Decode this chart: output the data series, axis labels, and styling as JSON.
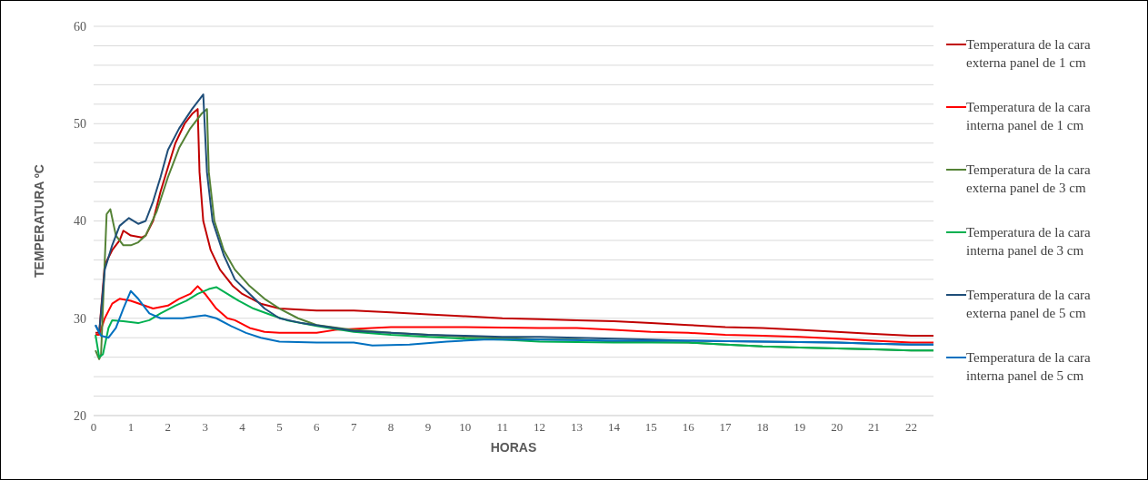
{
  "chart_data": {
    "type": "line",
    "xlabel": "HORAS",
    "ylabel": "TEMPERATURA ºC",
    "xlim": [
      0,
      22.6
    ],
    "xticks": [
      0,
      1,
      2,
      3,
      4,
      5,
      6,
      7,
      8,
      9,
      10,
      11,
      12,
      13,
      14,
      15,
      16,
      17,
      18,
      19,
      20,
      21,
      22
    ],
    "ylim": [
      20,
      60
    ],
    "yticks": [
      20,
      {
        "value": 22,
        "label": null
      },
      {
        "value": 24,
        "label": null
      },
      {
        "value": 26,
        "label": null
      },
      {
        "value": 28,
        "label": null
      },
      30,
      {
        "value": 32,
        "label": null
      },
      {
        "value": 34,
        "label": null
      },
      {
        "value": 36,
        "label": null
      },
      {
        "value": 38,
        "label": null
      },
      40,
      {
        "value": 42,
        "label": null
      },
      {
        "value": 44,
        "label": null
      },
      {
        "value": 46,
        "label": null
      },
      {
        "value": 48,
        "label": null
      },
      50,
      {
        "value": 52,
        "label": null
      },
      {
        "value": 54,
        "label": null
      },
      {
        "value": 56,
        "label": null
      },
      {
        "value": 58,
        "label": null
      },
      60
    ],
    "grid": "y",
    "legend": "right",
    "marker": "none",
    "line_style": "solid",
    "series": [
      {
        "name": "Temperatura de la cara externa panel de 1 cm",
        "color": "#c00000",
        "x": [
          0.05,
          0.15,
          0.3,
          0.5,
          0.7,
          0.8,
          1.0,
          1.3,
          1.4,
          1.6,
          1.8,
          2.0,
          2.2,
          2.45,
          2.65,
          2.8,
          2.85,
          2.95,
          3.15,
          3.4,
          3.75,
          4.0,
          4.5,
          5,
          6,
          7,
          8,
          9,
          10,
          11,
          12,
          13,
          14,
          15,
          16,
          17,
          18,
          19,
          20,
          21,
          22,
          22.6
        ],
        "values": [
          28.5,
          28.5,
          35.5,
          37,
          38,
          39,
          38.5,
          38.3,
          38.5,
          40,
          43,
          45.5,
          48,
          50,
          51,
          51.5,
          45,
          40,
          37,
          35,
          33.3,
          32.5,
          31.5,
          31,
          30.8,
          30.8,
          30.6,
          30.4,
          30.2,
          30,
          29.9,
          29.8,
          29.7,
          29.5,
          29.3,
          29.1,
          29,
          28.8,
          28.6,
          28.4,
          28.2,
          28.2
        ]
      },
      {
        "name": "Temperatura de la cara interna panel de 1 cm",
        "color": "#ff0000",
        "x": [
          0.05,
          0.15,
          0.3,
          0.5,
          0.7,
          1.0,
          1.3,
          1.6,
          2.0,
          2.3,
          2.6,
          2.8,
          3.0,
          3.3,
          3.6,
          3.8,
          4.2,
          4.6,
          5,
          6,
          6.5,
          7.5,
          8,
          10,
          12,
          13,
          14,
          15,
          16,
          17,
          18,
          19,
          20,
          21,
          22,
          22.6
        ],
        "values": [
          28.3,
          28.3,
          30,
          31.5,
          32,
          31.8,
          31.4,
          31,
          31.3,
          32,
          32.5,
          33.3,
          32.5,
          31,
          30,
          29.8,
          29,
          28.6,
          28.5,
          28.5,
          28.8,
          29,
          29.1,
          29.1,
          29,
          29,
          28.8,
          28.6,
          28.5,
          28.3,
          28.2,
          28.1,
          27.9,
          27.7,
          27.5,
          27.5
        ]
      },
      {
        "name": "Temperatura de la cara externa panel de 3 cm",
        "color": "#548235",
        "x": [
          0.05,
          0.15,
          0.2,
          0.35,
          0.45,
          0.6,
          0.8,
          1.0,
          1.2,
          1.4,
          1.7,
          2.0,
          2.3,
          2.6,
          2.9,
          3.05,
          3.1,
          3.25,
          3.5,
          3.8,
          4.2,
          4.6,
          5,
          5.5,
          6,
          7,
          8,
          9,
          10,
          11,
          12,
          13,
          14,
          16,
          17,
          18,
          19,
          20,
          21,
          22,
          22.6
        ],
        "values": [
          26.7,
          25.8,
          26.3,
          40.7,
          41.2,
          38.5,
          37.5,
          37.5,
          37.8,
          38.5,
          41,
          44.5,
          47.5,
          49.5,
          51,
          51.5,
          45,
          40,
          37,
          35,
          33.3,
          32,
          31,
          30,
          29.3,
          28.8,
          28.5,
          28.3,
          28.1,
          28,
          27.8,
          27.8,
          27.6,
          27.5,
          27.3,
          27.1,
          27,
          26.9,
          26.8,
          26.7,
          26.7
        ]
      },
      {
        "name": "Temperatura de la cara interna panel de 3 cm",
        "color": "#00b050",
        "x": [
          0.05,
          0.15,
          0.25,
          0.4,
          0.5,
          0.8,
          1.2,
          1.5,
          1.8,
          2.2,
          2.5,
          2.8,
          3.1,
          3.3,
          3.6,
          3.9,
          4.3,
          4.8,
          5.2,
          6,
          7,
          8,
          9,
          10,
          11,
          12,
          14,
          16,
          17,
          18,
          19,
          20,
          21,
          22,
          22.6
        ],
        "values": [
          28.3,
          26,
          26.3,
          29,
          29.8,
          29.7,
          29.5,
          29.8,
          30.5,
          31.3,
          31.8,
          32.5,
          33,
          33.2,
          32.5,
          31.8,
          31,
          30.3,
          29.8,
          29.2,
          28.6,
          28.3,
          28.1,
          27.9,
          27.8,
          27.6,
          27.5,
          27.5,
          27.3,
          27.1,
          27,
          26.9,
          26.8,
          26.7,
          26.7
        ]
      },
      {
        "name": "Temperatura de la cara externa panel de 5 cm",
        "color": "#1f4e79",
        "x": [
          0.05,
          0.15,
          0.3,
          0.5,
          0.7,
          0.95,
          1.2,
          1.4,
          1.6,
          1.8,
          2.0,
          2.3,
          2.65,
          2.95,
          3.05,
          3.2,
          3.5,
          3.8,
          4.2,
          4.6,
          5,
          5.6,
          6.5,
          7,
          8,
          9,
          10,
          11,
          12,
          13,
          14,
          15,
          16,
          18,
          20,
          21,
          22,
          22.6
        ],
        "values": [
          29.3,
          28.5,
          35,
          37.5,
          39.5,
          40.3,
          39.7,
          40,
          42,
          44.5,
          47.3,
          49.5,
          51.5,
          53,
          45,
          40,
          36.5,
          34,
          32.5,
          31,
          30,
          29.5,
          29,
          28.7,
          28.5,
          28.3,
          28.2,
          28.1,
          28.1,
          28,
          27.9,
          27.8,
          27.7,
          27.6,
          27.5,
          27.4,
          27.3,
          27.3
        ]
      },
      {
        "name": "Temperatura de la cara interna panel de 5 cm",
        "color": "#0070c0",
        "x": [
          0.05,
          0.2,
          0.4,
          0.6,
          0.8,
          1.0,
          1.2,
          1.5,
          1.8,
          2.4,
          2.8,
          3.0,
          3.3,
          3.7,
          4.1,
          4.5,
          5,
          6,
          7,
          7.5,
          8.5,
          9.5,
          10.5,
          12,
          14,
          16,
          18,
          20,
          21,
          22,
          22.6
        ],
        "values": [
          29.3,
          28.2,
          28,
          29,
          31,
          32.8,
          32,
          30.5,
          30,
          30,
          30.2,
          30.3,
          30,
          29.2,
          28.5,
          28,
          27.6,
          27.5,
          27.5,
          27.2,
          27.3,
          27.6,
          27.8,
          27.8,
          27.7,
          27.7,
          27.6,
          27.5,
          27.4,
          27.3,
          27.3
        ]
      }
    ]
  }
}
